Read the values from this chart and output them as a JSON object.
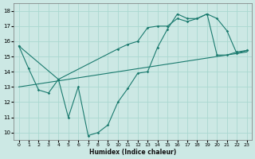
{
  "xlabel": "Humidex (Indice chaleur)",
  "bg_color": "#cce8e4",
  "line_color": "#1a7a6e",
  "grid_color": "#aad8d0",
  "xlim": [
    -0.5,
    23.5
  ],
  "ylim": [
    9.5,
    18.5
  ],
  "xticks": [
    0,
    1,
    2,
    3,
    4,
    5,
    6,
    7,
    8,
    9,
    10,
    11,
    12,
    13,
    14,
    15,
    16,
    17,
    18,
    19,
    20,
    21,
    22,
    23
  ],
  "yticks": [
    10,
    11,
    12,
    13,
    14,
    15,
    16,
    17,
    18
  ],
  "line1_x": [
    0,
    1,
    2,
    3,
    4,
    5,
    6,
    7,
    8,
    9,
    10,
    11,
    12,
    13,
    14,
    15,
    16,
    17,
    18,
    19,
    20,
    21,
    22,
    23
  ],
  "line1_y": [
    15.7,
    14.2,
    12.8,
    12.6,
    13.5,
    11.0,
    13.0,
    9.8,
    10.0,
    10.5,
    12.0,
    12.9,
    13.9,
    14.0,
    15.6,
    16.8,
    17.8,
    17.5,
    17.5,
    17.8,
    15.1,
    15.1,
    15.3,
    15.4
  ],
  "line2_x": [
    0,
    4,
    10,
    11,
    12,
    13,
    14,
    15,
    16,
    17,
    18,
    19,
    20,
    21,
    22,
    23
  ],
  "line2_y": [
    15.7,
    13.5,
    15.5,
    15.8,
    16.0,
    16.9,
    17.0,
    17.0,
    17.5,
    17.3,
    17.5,
    17.8,
    17.5,
    16.7,
    15.2,
    15.4
  ],
  "line3_x": [
    0,
    23
  ],
  "line3_y": [
    13.0,
    15.3
  ]
}
